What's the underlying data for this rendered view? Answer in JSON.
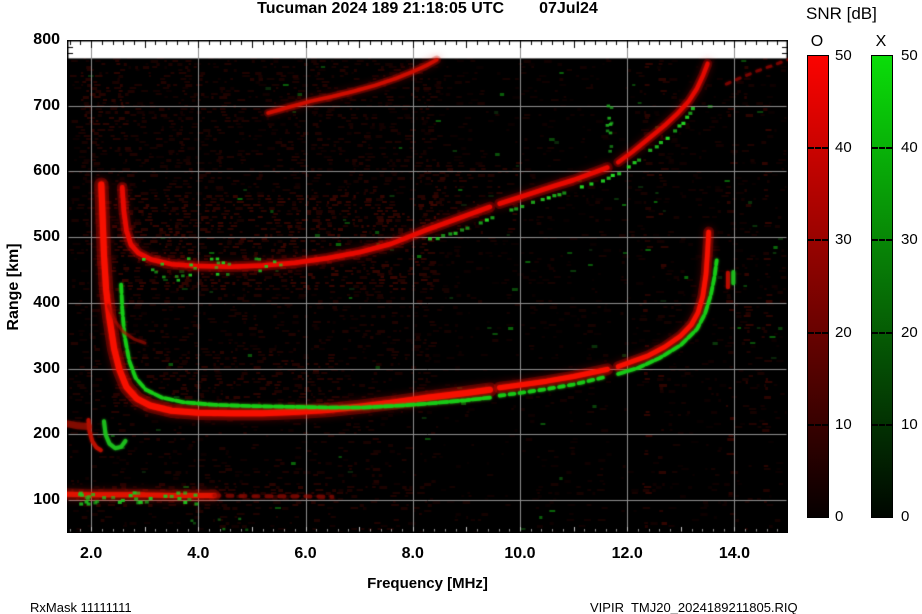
{
  "title": {
    "main": "Tucuman 2024 189 21:18:05 UTC",
    "date": "07Jul24"
  },
  "axes": {
    "x_label": "Frequency [MHz]",
    "y_label": "Range [km]",
    "x_ticks": [
      {
        "f": 2,
        "label": "2.0"
      },
      {
        "f": 4,
        "label": "4.0"
      },
      {
        "f": 6,
        "label": "6.0"
      },
      {
        "f": 8,
        "label": "8.0"
      },
      {
        "f": 10,
        "label": "10.0"
      },
      {
        "f": 12,
        "label": "12.0"
      },
      {
        "f": 14,
        "label": "14.0"
      }
    ],
    "y_ticks": [
      {
        "km": 800,
        "label": "800"
      },
      {
        "km": 700,
        "label": "700"
      },
      {
        "km": 600,
        "label": "600"
      },
      {
        "km": 500,
        "label": "500"
      },
      {
        "km": 400,
        "label": "400"
      },
      {
        "km": 300,
        "label": "300"
      },
      {
        "km": 200,
        "label": "200"
      },
      {
        "km": 100,
        "label": "100"
      }
    ]
  },
  "footer": {
    "left": "RxMask 11111111",
    "right": "VIPIR  TMJ20_2024189211805.RIQ"
  },
  "colorbar": {
    "title": "SNR [dB]",
    "ticks": [
      {
        "v": 50,
        "label": "50"
      },
      {
        "v": 40,
        "label": "40"
      },
      {
        "v": 30,
        "label": "30"
      },
      {
        "v": 20,
        "label": "20"
      },
      {
        "v": 10,
        "label": "10"
      },
      {
        "v": 0,
        "label": "0"
      }
    ],
    "bars": [
      {
        "label": "O",
        "left": 807,
        "num_left": 835,
        "top_color": "#fb0300",
        "mid_color": "#8d0300",
        "bot_color": "#060000"
      },
      {
        "label": "X",
        "left": 871,
        "num_left": 901,
        "top_color": "#0add09",
        "mid_color": "#077c06",
        "bot_color": "#000600"
      }
    ]
  },
  "chart_data": {
    "type": "heatmap",
    "title": "Tucuman 2024 189 21:18:05 UTC   07Jul24",
    "xlabel": "Frequency [MHz]",
    "ylabel": "Range [km]",
    "xlim": [
      1.55,
      15.0
    ],
    "ylim": [
      50,
      800
    ],
    "data_top_km": 772,
    "grid_x": [
      2,
      4,
      6,
      8,
      10,
      12,
      14
    ],
    "grid_y": [
      100,
      200,
      300,
      400,
      500,
      600,
      700
    ],
    "minor_tick_mhz": 0.2,
    "strip_tick_km": [
      780,
      790
    ],
    "snr_scale_db": [
      0,
      50
    ],
    "gap_columns_mhz": [
      9.53,
      11.74
    ],
    "rfi_columns_mhz": [
      12.33,
      12.62,
      13.88,
      14.22,
      14.55
    ],
    "noise_regions": [
      [
        1.55,
        8.35,
        50,
        800,
        0.12,
        6,
        0.006
      ],
      [
        2.3,
        6.6,
        235,
        330,
        0.18,
        8,
        0.008
      ],
      [
        2.35,
        8.45,
        420,
        565,
        0.33,
        16,
        0.018
      ],
      [
        8.27,
        9.95,
        500,
        618,
        0.3,
        14,
        0.015
      ],
      [
        1.8,
        2.65,
        630,
        772,
        0.25,
        10,
        0.006
      ],
      [
        2.6,
        8.45,
        560,
        772,
        0.08,
        2,
        0.008
      ],
      [
        1.55,
        6.6,
        93,
        130,
        0.2,
        8,
        0.01
      ],
      [
        8.45,
        15.0,
        330,
        772,
        0.0,
        0,
        0.016
      ]
    ],
    "noise_suppress": [
      [
        1.55,
        15.0,
        50,
        93,
        0.55
      ],
      [
        1.55,
        15.0,
        130,
        235,
        0.55
      ],
      [
        8.45,
        15.0,
        50,
        330,
        0.7
      ],
      [
        8.45,
        15.0,
        330,
        800,
        0.8
      ]
    ],
    "traces": [
      {
        "name": "F 1st hop O-mode (low)",
        "mode": "O",
        "style": "line",
        "color": "#f61000",
        "width": 6,
        "alpha": 1,
        "under": 1,
        "points": [
          [
            2.19,
            580
          ],
          [
            2.21,
            540
          ],
          [
            2.24,
            472
          ],
          [
            2.28,
            420
          ],
          [
            2.34,
            378
          ],
          [
            2.43,
            330
          ],
          [
            2.53,
            298
          ],
          [
            2.66,
            272
          ],
          [
            2.86,
            254
          ],
          [
            3.1,
            244
          ],
          [
            3.5,
            236
          ],
          [
            4.0,
            233
          ],
          [
            4.6,
            232
          ],
          [
            5.2,
            232
          ],
          [
            5.8,
            234
          ],
          [
            6.4,
            237
          ],
          [
            7.0,
            242
          ],
          [
            7.6,
            248
          ],
          [
            8.3,
            256
          ],
          [
            9.0,
            263
          ],
          [
            9.44,
            268
          ]
        ]
      },
      {
        "name": "F 1st hop O-mode (mid)",
        "mode": "O",
        "style": "line",
        "color": "#f61000",
        "width": 5,
        "alpha": 1,
        "under": 1,
        "points": [
          [
            9.62,
            271
          ],
          [
            10.0,
            275
          ],
          [
            10.5,
            281
          ],
          [
            11.0,
            288
          ],
          [
            11.63,
            299
          ]
        ]
      },
      {
        "name": "F 1st hop O-mode (asymptote foF2)",
        "mode": "O",
        "style": "line",
        "color": "#f61000",
        "width": 4.5,
        "alpha": 1,
        "under": 1,
        "points": [
          [
            11.83,
            303
          ],
          [
            12.1,
            311
          ],
          [
            12.4,
            320
          ],
          [
            12.7,
            333
          ],
          [
            13.0,
            350
          ],
          [
            13.2,
            367
          ],
          [
            13.32,
            385
          ],
          [
            13.41,
            410
          ],
          [
            13.47,
            443
          ],
          [
            13.5,
            478
          ],
          [
            13.52,
            508
          ]
        ]
      },
      {
        "name": "F 1st hop X-mode (low)",
        "mode": "X",
        "style": "line",
        "color": "#17ce17",
        "width": 3.6,
        "alpha": 0.95,
        "dash": [
          8,
          3
        ],
        "points": [
          [
            2.56,
            428
          ],
          [
            2.58,
            392
          ],
          [
            2.62,
            352
          ],
          [
            2.71,
            312
          ],
          [
            2.83,
            286
          ],
          [
            3.02,
            268
          ],
          [
            3.32,
            256
          ],
          [
            3.72,
            249
          ],
          [
            4.3,
            245
          ],
          [
            5.0,
            243
          ],
          [
            5.7,
            242
          ],
          [
            6.4,
            241
          ],
          [
            7.1,
            241
          ],
          [
            7.8,
            244
          ],
          [
            8.3,
            247
          ],
          [
            9.0,
            252
          ],
          [
            9.44,
            256
          ]
        ]
      },
      {
        "name": "F 1st hop X-mode (mid)",
        "mode": "X",
        "style": "line",
        "color": "#17ce17",
        "width": 3.6,
        "alpha": 0.9,
        "dash": [
          5,
          5
        ],
        "points": [
          [
            9.62,
            259
          ],
          [
            10.0,
            263
          ],
          [
            10.5,
            269
          ],
          [
            11.0,
            276
          ],
          [
            11.63,
            288
          ]
        ]
      },
      {
        "name": "F 1st hop X-mode (asymptote fxF2)",
        "mode": "X",
        "style": "line",
        "color": "#17ce17",
        "width": 3.6,
        "alpha": 0.95,
        "dash": [
          7,
          3
        ],
        "points": [
          [
            11.83,
            292
          ],
          [
            12.2,
            301
          ],
          [
            12.6,
            316
          ],
          [
            13.0,
            336
          ],
          [
            13.3,
            360
          ],
          [
            13.45,
            383
          ],
          [
            13.56,
            412
          ],
          [
            13.63,
            440
          ],
          [
            13.67,
            465
          ]
        ]
      },
      {
        "name": "F 2nd hop O-mode (low)",
        "mode": "O",
        "style": "line",
        "color": "#e80a00",
        "width": 4.5,
        "alpha": 0.95,
        "under": 1,
        "points": [
          [
            2.58,
            576
          ],
          [
            2.61,
            540
          ],
          [
            2.66,
            510
          ],
          [
            2.74,
            489
          ],
          [
            2.88,
            476
          ],
          [
            3.12,
            466
          ],
          [
            3.5,
            459
          ],
          [
            4.0,
            456
          ],
          [
            4.6,
            455
          ],
          [
            5.2,
            457
          ],
          [
            5.8,
            461
          ],
          [
            6.4,
            468
          ],
          [
            7.0,
            477
          ],
          [
            7.6,
            490
          ],
          [
            8.28,
            512
          ],
          [
            8.8,
            527
          ],
          [
            9.44,
            546
          ]
        ]
      },
      {
        "name": "F 2nd hop O-mode (mid)",
        "mode": "O",
        "style": "line",
        "color": "#e80a00",
        "width": 4.5,
        "alpha": 0.95,
        "under": 1,
        "points": [
          [
            9.62,
            551
          ],
          [
            10.0,
            561
          ],
          [
            10.6,
            577
          ],
          [
            11.0,
            587
          ],
          [
            11.63,
            606
          ]
        ]
      },
      {
        "name": "F 2nd hop O-mode (high)",
        "mode": "O",
        "style": "line",
        "color": "#e80a00",
        "width": 4,
        "alpha": 0.9,
        "under": 1,
        "points": [
          [
            11.83,
            614
          ],
          [
            12.1,
            630
          ],
          [
            12.4,
            650
          ],
          [
            12.7,
            670
          ],
          [
            12.95,
            689
          ],
          [
            13.15,
            707
          ],
          [
            13.3,
            726
          ],
          [
            13.42,
            747
          ],
          [
            13.5,
            764
          ]
        ]
      },
      {
        "name": "F 2nd hop X-mode dots",
        "mode": "X",
        "style": "dots",
        "color": "#25dd25",
        "size": 4,
        "step": 6,
        "keep": 0.7,
        "points": [
          [
            8.3,
            499
          ],
          [
            9.0,
            515
          ],
          [
            9.44,
            532
          ],
          [
            9.7,
            540
          ],
          [
            10.0,
            549
          ],
          [
            10.6,
            565
          ],
          [
            11.0,
            575
          ],
          [
            11.6,
            592
          ],
          [
            11.9,
            603
          ],
          [
            12.2,
            620
          ],
          [
            12.5,
            640
          ],
          [
            12.8,
            660
          ],
          [
            13.0,
            676
          ],
          [
            13.15,
            692
          ],
          [
            13.25,
            705
          ]
        ]
      },
      {
        "name": "F 2nd hop X-mode scatter low",
        "mode": "X",
        "style": "scatter",
        "color": "#22cc22",
        "size": 3.5,
        "count": 26,
        "box": [
          2.95,
          5.7,
          436,
          470
        ]
      },
      {
        "name": "F 3rd hop O-mode",
        "mode": "O",
        "style": "line",
        "color": "#d40e00",
        "width": 3.5,
        "alpha": 0.85,
        "under": 1,
        "points": [
          [
            5.3,
            689
          ],
          [
            5.7,
            698
          ],
          [
            6.1,
            707
          ],
          [
            6.5,
            714
          ],
          [
            6.9,
            722
          ],
          [
            7.3,
            731
          ],
          [
            7.7,
            742
          ],
          [
            8.0,
            752
          ],
          [
            8.25,
            761
          ],
          [
            8.45,
            770
          ]
        ]
      },
      {
        "name": "F 2nd hop X asymptote faint",
        "mode": "X",
        "style": "line",
        "color": "#9c0700",
        "width": 3,
        "alpha": 0.6,
        "dash": [
          4,
          7
        ],
        "points": [
          [
            13.85,
            733
          ],
          [
            14.1,
            742
          ],
          [
            14.4,
            752
          ],
          [
            14.7,
            761
          ],
          [
            15.0,
            770
          ]
        ]
      },
      {
        "name": "Es layer band",
        "mode": "O",
        "style": "line",
        "color": "#e01400",
        "width": 5,
        "alpha": 0.95,
        "under": 1,
        "points": [
          [
            1.57,
            109
          ],
          [
            2.0,
            108
          ],
          [
            2.5,
            108
          ],
          [
            3.0,
            108
          ],
          [
            3.5,
            107
          ],
          [
            4.0,
            107
          ],
          [
            4.3,
            107
          ]
        ]
      },
      {
        "name": "Es layer band faint extension",
        "mode": "O",
        "style": "line",
        "color": "#a00a00",
        "width": 4,
        "alpha": 0.5,
        "dash": [
          5,
          8
        ],
        "points": [
          [
            4.3,
            107
          ],
          [
            5.0,
            106
          ],
          [
            5.8,
            106
          ],
          [
            6.5,
            105
          ]
        ]
      },
      {
        "name": "Es layer X-mode scatter",
        "mode": "X",
        "style": "scatter",
        "color": "#1fc41f",
        "size": 4,
        "count": 34,
        "box": [
          1.62,
          3.95,
          96,
          114
        ]
      },
      {
        "name": "below-Es green dots",
        "mode": "X",
        "style": "scatter",
        "color": "#156f15",
        "size": 3,
        "count": 6,
        "box": [
          3.8,
          5.2,
          52,
          80
        ]
      },
      {
        "name": "O-mode low hook",
        "mode": "O",
        "style": "line",
        "color": "#c81000",
        "width": 4,
        "alpha": 0.8,
        "points": [
          [
            1.95,
            222
          ],
          [
            1.97,
            205
          ],
          [
            2.02,
            190
          ],
          [
            2.1,
            180
          ],
          [
            2.18,
            176
          ]
        ]
      },
      {
        "name": "X-mode low hook",
        "mode": "X",
        "style": "line",
        "color": "#1fc41f",
        "width": 4,
        "alpha": 0.85,
        "points": [
          [
            2.24,
            220
          ],
          [
            2.27,
            200
          ],
          [
            2.34,
            186
          ],
          [
            2.45,
            179
          ],
          [
            2.56,
            181
          ],
          [
            2.64,
            190
          ]
        ]
      },
      {
        "name": "O cusp secondary arc",
        "mode": "O",
        "style": "line",
        "color": "#a80c00",
        "width": 3,
        "alpha": 0.5,
        "points": [
          [
            2.32,
            396
          ],
          [
            2.45,
            372
          ],
          [
            2.6,
            356
          ],
          [
            2.8,
            345
          ],
          [
            3.0,
            339
          ]
        ]
      },
      {
        "name": "left edge red patch",
        "mode": "O",
        "style": "line",
        "color": "#b01000",
        "width": 7,
        "alpha": 0.5,
        "points": [
          [
            1.57,
            216
          ],
          [
            1.75,
            213
          ],
          [
            1.95,
            212
          ]
        ]
      },
      {
        "name": "green RFI streak 11.6 MHz",
        "mode": "X",
        "style": "scatter",
        "color": "#20b020",
        "size": 3.5,
        "count": 10,
        "box": [
          11.58,
          11.68,
          612,
          702
        ]
      },
      {
        "name": "detached red dash near fxF2",
        "mode": "O",
        "style": "line",
        "color": "#c80c00",
        "width": 4,
        "alpha": 0.8,
        "points": [
          [
            13.88,
            424
          ],
          [
            13.88,
            446
          ]
        ]
      },
      {
        "name": "detached green dash near fxF2",
        "mode": "X",
        "style": "line",
        "color": "#1fc41f",
        "width": 4,
        "alpha": 0.8,
        "points": [
          [
            13.98,
            430
          ],
          [
            13.98,
            447
          ]
        ]
      }
    ]
  }
}
